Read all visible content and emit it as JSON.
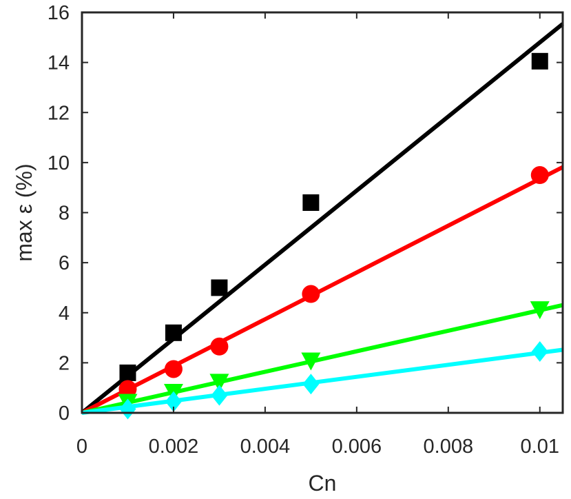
{
  "chart_data": {
    "type": "scatter",
    "title": "",
    "xlabel": "Cn",
    "ylabel": "max ε (%)",
    "xlim": [
      0,
      0.0105
    ],
    "ylim": [
      0,
      16
    ],
    "xticks": [
      0,
      0.002,
      0.004,
      0.006,
      0.008,
      0.01
    ],
    "xtick_labels": [
      "0",
      "0.002",
      "0.004",
      "0.006",
      "0.008",
      "0.01"
    ],
    "yticks": [
      0,
      2,
      4,
      6,
      8,
      10,
      12,
      14,
      16
    ],
    "ytick_labels": [
      "0",
      "2",
      "4",
      "6",
      "8",
      "10",
      "12",
      "14",
      "16"
    ],
    "grid": false,
    "legend": "none",
    "series": [
      {
        "marker": "square",
        "color": "#000000",
        "x": [
          0.001,
          0.002,
          0.003,
          0.005,
          0.01
        ],
        "y": [
          1.6,
          3.2,
          5.0,
          8.4,
          14.05
        ],
        "fit_line": {
          "slope": 1480,
          "intercept": 0
        }
      },
      {
        "marker": "circle",
        "color": "#ff0000",
        "x": [
          0.001,
          0.002,
          0.003,
          0.005,
          0.01
        ],
        "y": [
          0.95,
          1.75,
          2.65,
          4.75,
          9.5
        ],
        "fit_line": {
          "slope": 935,
          "intercept": 0
        }
      },
      {
        "marker": "triangle-down",
        "color": "#00ff00",
        "x": [
          0.001,
          0.002,
          0.003,
          0.005,
          0.01
        ],
        "y": [
          0.4,
          0.8,
          1.2,
          2.05,
          4.1
        ],
        "fit_line": {
          "slope": 410,
          "intercept": 0
        }
      },
      {
        "marker": "diamond",
        "color": "#00ffff",
        "x": [
          0.001,
          0.002,
          0.003,
          0.005,
          0.01
        ],
        "y": [
          0.15,
          0.45,
          0.7,
          1.15,
          2.45
        ],
        "fit_line": {
          "slope": 240,
          "intercept": 0
        }
      }
    ]
  }
}
